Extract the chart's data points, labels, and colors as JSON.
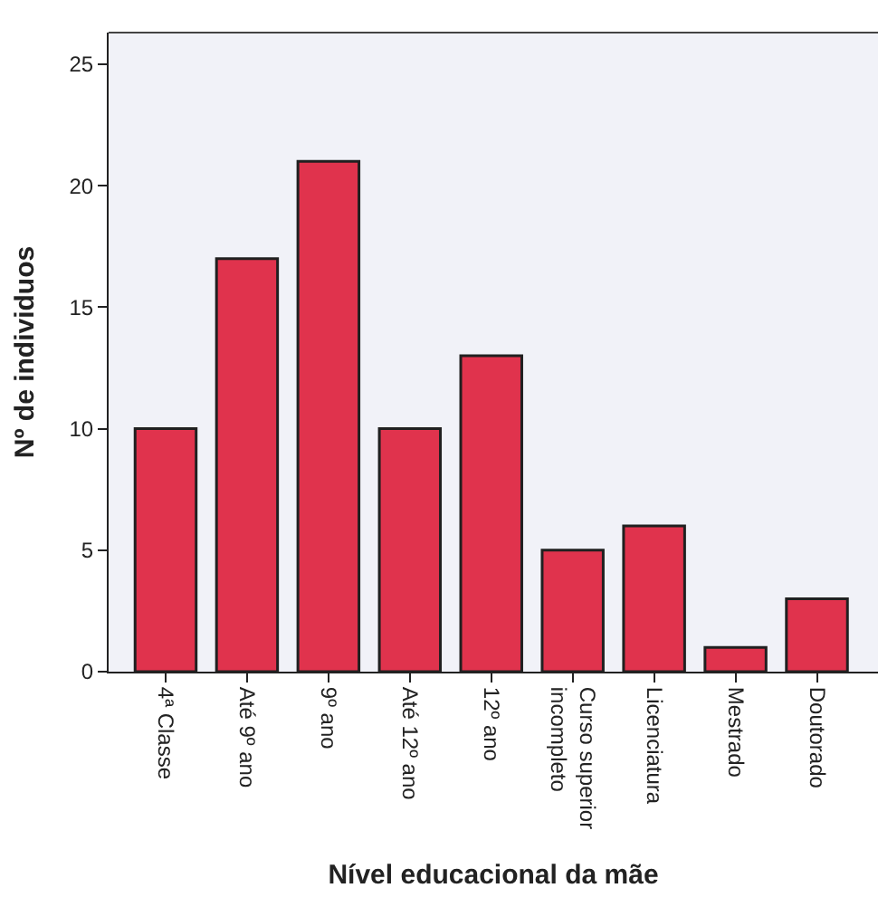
{
  "chart_data": {
    "type": "bar",
    "xlabel": "Nível educacional da mãe",
    "ylabel": "Nº de individuos",
    "categories": [
      "4ª Classe",
      "Até 9º ano",
      "9º ano",
      "Até 12º ano",
      "12º ano",
      "Curso superior\nincompleto",
      "Licenciatura",
      "Mestrado",
      "Doutorado"
    ],
    "values": [
      10,
      17,
      21,
      10,
      13,
      5,
      6,
      1,
      3
    ],
    "color": "#e0334d",
    "ylim": [
      0,
      26.3
    ],
    "yticks": [
      0,
      5,
      10,
      15,
      20,
      25
    ]
  }
}
